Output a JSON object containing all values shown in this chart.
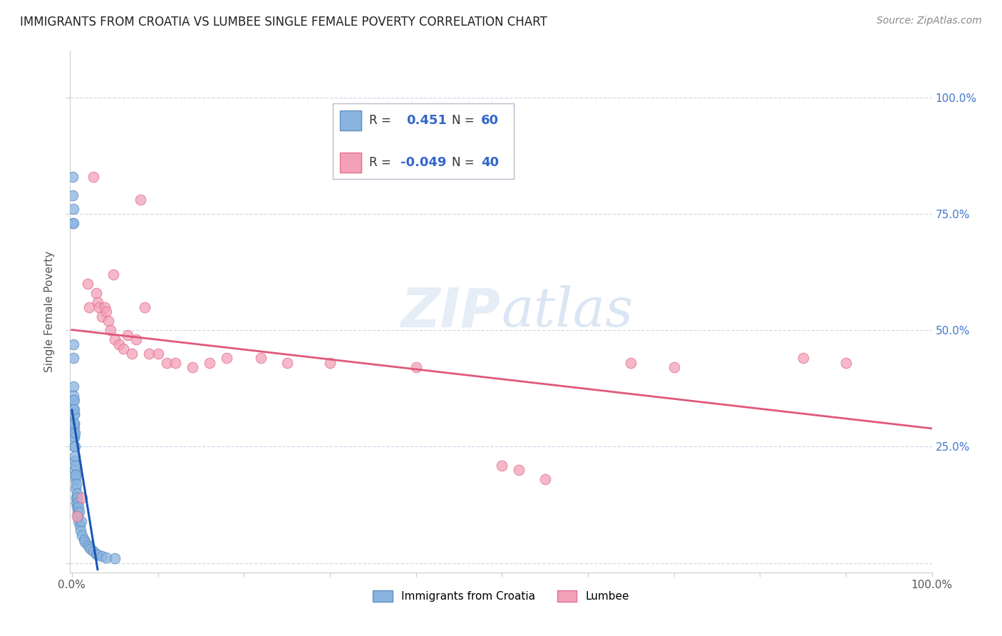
{
  "title": "IMMIGRANTS FROM CROATIA VS LUMBEE SINGLE FEMALE POVERTY CORRELATION CHART",
  "source": "Source: ZipAtlas.com",
  "ylabel": "Single Female Poverty",
  "y_ticks": [
    0.0,
    0.25,
    0.5,
    0.75,
    1.0
  ],
  "y_tick_labels": [
    "",
    "25.0%",
    "50.0%",
    "75.0%",
    "100.0%"
  ],
  "croatia_color": "#8ab4e0",
  "lumbee_color": "#f4a0b8",
  "croatia_edge_color": "#6090c0",
  "lumbee_edge_color": "#e07090",
  "croatia_line_color": "#1a56b0",
  "lumbee_line_color": "#e05878",
  "croatia_scatter_x": [
    0.001,
    0.001,
    0.0012,
    0.0015,
    0.0015,
    0.0018,
    0.0018,
    0.002,
    0.002,
    0.0022,
    0.0022,
    0.0022,
    0.0025,
    0.0025,
    0.0025,
    0.0025,
    0.0028,
    0.0028,
    0.0028,
    0.003,
    0.003,
    0.003,
    0.003,
    0.0035,
    0.0035,
    0.0035,
    0.0038,
    0.0038,
    0.004,
    0.004,
    0.0042,
    0.0045,
    0.0045,
    0.005,
    0.005,
    0.0055,
    0.0058,
    0.006,
    0.0062,
    0.0065,
    0.0068,
    0.007,
    0.0072,
    0.008,
    0.0082,
    0.009,
    0.01,
    0.0105,
    0.012,
    0.014,
    0.015,
    0.018,
    0.02,
    0.022,
    0.025,
    0.028,
    0.03,
    0.035,
    0.04,
    0.05
  ],
  "croatia_scatter_y": [
    0.83,
    0.79,
    0.73,
    0.73,
    0.76,
    0.44,
    0.47,
    0.35,
    0.38,
    0.3,
    0.33,
    0.36,
    0.28,
    0.3,
    0.32,
    0.35,
    0.27,
    0.29,
    0.32,
    0.25,
    0.27,
    0.3,
    0.33,
    0.22,
    0.25,
    0.28,
    0.2,
    0.23,
    0.18,
    0.21,
    0.19,
    0.16,
    0.19,
    0.14,
    0.17,
    0.13,
    0.15,
    0.12,
    0.14,
    0.11,
    0.13,
    0.1,
    0.12,
    0.09,
    0.11,
    0.08,
    0.07,
    0.09,
    0.06,
    0.05,
    0.045,
    0.04,
    0.035,
    0.03,
    0.025,
    0.02,
    0.018,
    0.015,
    0.012,
    0.01
  ],
  "lumbee_scatter_x": [
    0.006,
    0.012,
    0.018,
    0.02,
    0.025,
    0.028,
    0.03,
    0.032,
    0.035,
    0.038,
    0.04,
    0.042,
    0.045,
    0.048,
    0.05,
    0.055,
    0.06,
    0.065,
    0.07,
    0.075,
    0.08,
    0.085,
    0.09,
    0.1,
    0.11,
    0.12,
    0.14,
    0.16,
    0.18,
    0.22,
    0.25,
    0.3,
    0.4,
    0.5,
    0.52,
    0.55,
    0.65,
    0.7,
    0.85,
    0.9
  ],
  "lumbee_scatter_y": [
    0.1,
    0.14,
    0.6,
    0.55,
    0.83,
    0.58,
    0.56,
    0.55,
    0.53,
    0.55,
    0.54,
    0.52,
    0.5,
    0.62,
    0.48,
    0.47,
    0.46,
    0.49,
    0.45,
    0.48,
    0.78,
    0.55,
    0.45,
    0.45,
    0.43,
    0.43,
    0.42,
    0.43,
    0.44,
    0.44,
    0.43,
    0.43,
    0.42,
    0.21,
    0.2,
    0.18,
    0.43,
    0.42,
    0.44,
    0.43
  ],
  "background_color": "#ffffff",
  "grid_color": "#d0d8e8"
}
